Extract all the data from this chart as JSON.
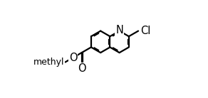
{
  "background_color": "#ffffff",
  "line_color": "#000000",
  "line_width": 1.6,
  "label_fontsize": 10.5,
  "BL": 0.115,
  "labels": {
    "N": "N",
    "Cl": "Cl",
    "O_carbonyl": "O",
    "O_ester": "O",
    "methyl": "methyl"
  }
}
